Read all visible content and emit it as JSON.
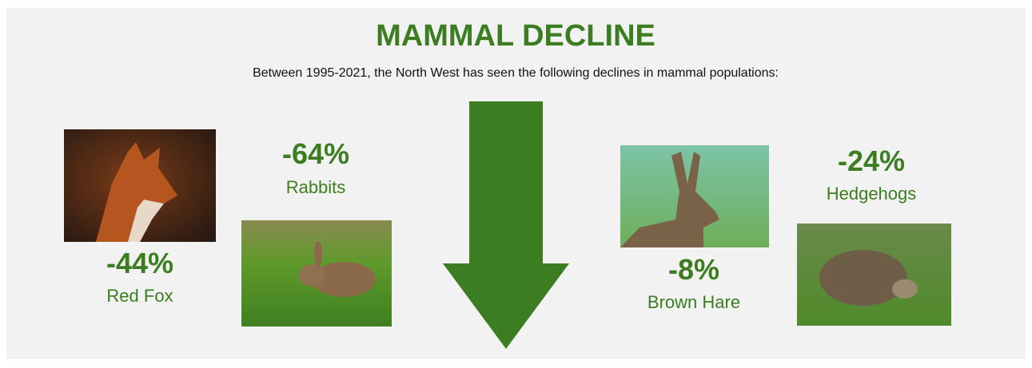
{
  "header": {
    "title": "MAMMAL DECLINE",
    "subtitle": "Between 1995-2021, the North West has seen the following declines in mammal populations:"
  },
  "items": [
    {
      "change": "-44%",
      "name": "Red Fox"
    },
    {
      "change": "-64%",
      "name": "Rabbits"
    },
    {
      "change": "-8%",
      "name": "Brown Hare"
    },
    {
      "change": "-24%",
      "name": "Hedgehogs"
    }
  ]
}
